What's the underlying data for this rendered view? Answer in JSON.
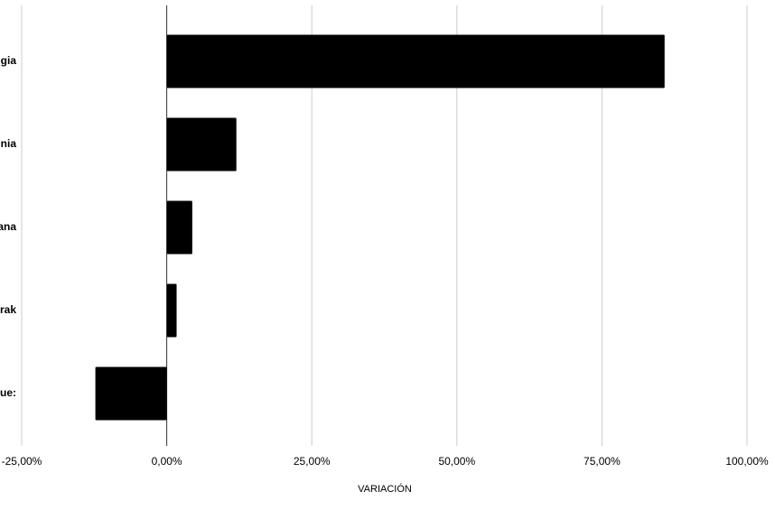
{
  "chart_data": {
    "type": "bar",
    "orientation": "horizontal",
    "categories": [
      "gia",
      "nia",
      "ana",
      "rak",
      "ue:"
    ],
    "values": [
      85.8,
      12.0,
      4.4,
      1.7,
      -12.3
    ],
    "color": "#000000",
    "xlabel": "VARIACIÓN",
    "xlim": [
      -25,
      100
    ],
    "xticks": [
      {
        "value": -25,
        "label": "-25,00%"
      },
      {
        "value": 0,
        "label": "0,00%"
      },
      {
        "value": 25,
        "label": "25,00%"
      },
      {
        "value": 50,
        "label": "50,00%"
      },
      {
        "value": 75,
        "label": "75,00%"
      },
      {
        "value": 100,
        "label": "100,00%"
      }
    ],
    "grid": true
  }
}
